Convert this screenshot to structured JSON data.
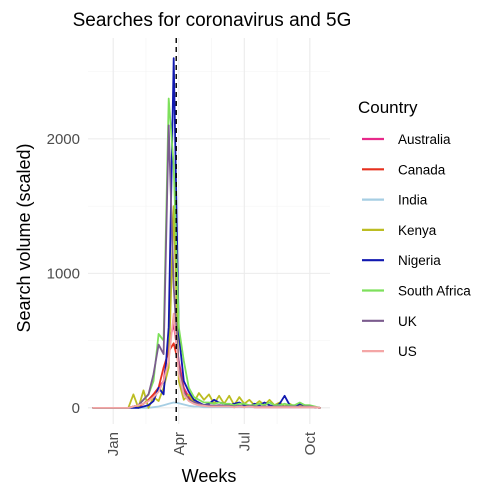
{
  "chart_data": {
    "type": "line",
    "title": "Searches for coronavirus and 5G",
    "xlabel": "Weeks",
    "ylabel": "Search volume (scaled)",
    "x_ticks": [
      {
        "label": "Jan",
        "week": 4
      },
      {
        "label": "Apr",
        "week": 17
      },
      {
        "label": "Jul",
        "week": 30
      },
      {
        "label": "Oct",
        "week": 43
      }
    ],
    "y_ticks": [
      0,
      1000,
      2000
    ],
    "xlim": [
      -1,
      47
    ],
    "ylim": [
      -120,
      2750
    ],
    "vline_week": 16.5,
    "grid": true,
    "legend": {
      "title": "Country",
      "placement": "right"
    },
    "series": [
      {
        "name": "Australia",
        "color": "#e7298a",
        "values": [
          0,
          0,
          0,
          0,
          0,
          0,
          0,
          0,
          10,
          20,
          30,
          60,
          100,
          150,
          200,
          480,
          620,
          350,
          150,
          80,
          40,
          30,
          20,
          15,
          10,
          15,
          10,
          10,
          5,
          10,
          5,
          10,
          5,
          5,
          5,
          5,
          5,
          5,
          5,
          5,
          5,
          5,
          5,
          5,
          5,
          0
        ]
      },
      {
        "name": "Canada",
        "color": "#e6301e",
        "values": [
          0,
          0,
          0,
          0,
          0,
          0,
          0,
          0,
          5,
          10,
          30,
          60,
          100,
          150,
          300,
          420,
          480,
          320,
          130,
          70,
          40,
          30,
          20,
          10,
          10,
          15,
          10,
          10,
          5,
          10,
          5,
          10,
          5,
          5,
          5,
          5,
          5,
          5,
          5,
          5,
          5,
          5,
          5,
          5,
          5,
          0
        ]
      },
      {
        "name": "India",
        "color": "#a6cee3",
        "values": [
          0,
          0,
          0,
          0,
          0,
          0,
          0,
          0,
          0,
          0,
          0,
          0,
          5,
          10,
          20,
          30,
          40,
          35,
          25,
          15,
          10,
          10,
          5,
          5,
          5,
          5,
          5,
          5,
          5,
          5,
          5,
          5,
          5,
          5,
          5,
          5,
          5,
          5,
          5,
          5,
          5,
          5,
          5,
          5,
          5,
          0
        ]
      },
      {
        "name": "Kenya",
        "color": "#bcbd22",
        "values": [
          0,
          0,
          0,
          0,
          0,
          0,
          0,
          0,
          100,
          0,
          130,
          0,
          80,
          50,
          150,
          300,
          1500,
          200,
          60,
          100,
          40,
          110,
          60,
          100,
          30,
          90,
          30,
          90,
          20,
          80,
          30,
          60,
          20,
          50,
          20,
          60,
          20,
          40,
          10,
          30,
          10,
          20,
          10,
          10,
          5,
          0
        ]
      },
      {
        "name": "Nigeria",
        "color": "#1018b0",
        "values": [
          0,
          0,
          0,
          0,
          0,
          0,
          0,
          0,
          0,
          0,
          10,
          20,
          50,
          150,
          100,
          600,
          2600,
          550,
          200,
          120,
          60,
          40,
          20,
          30,
          60,
          40,
          30,
          20,
          30,
          40,
          20,
          10,
          30,
          20,
          40,
          20,
          10,
          30,
          90,
          20,
          10,
          30,
          20,
          10,
          5,
          0
        ]
      },
      {
        "name": "South Africa",
        "color": "#7ee05c",
        "values": [
          0,
          0,
          0,
          0,
          0,
          0,
          0,
          0,
          10,
          20,
          60,
          100,
          200,
          550,
          500,
          2300,
          1800,
          600,
          350,
          150,
          80,
          60,
          40,
          40,
          30,
          40,
          30,
          30,
          20,
          30,
          30,
          20,
          20,
          30,
          20,
          40,
          20,
          20,
          30,
          20,
          20,
          40,
          20,
          20,
          10,
          0
        ]
      },
      {
        "name": "UK",
        "color": "#7b5c8e",
        "values": [
          0,
          0,
          0,
          0,
          0,
          0,
          0,
          0,
          10,
          20,
          60,
          100,
          250,
          470,
          400,
          2100,
          900,
          300,
          120,
          60,
          40,
          30,
          20,
          20,
          15,
          20,
          15,
          15,
          10,
          15,
          10,
          15,
          10,
          10,
          10,
          10,
          10,
          10,
          10,
          10,
          10,
          10,
          10,
          10,
          5,
          0
        ]
      },
      {
        "name": "US",
        "color": "#f4a6a6",
        "values": [
          0,
          0,
          0,
          0,
          0,
          0,
          0,
          0,
          10,
          20,
          30,
          50,
          80,
          120,
          200,
          350,
          700,
          250,
          100,
          50,
          30,
          20,
          15,
          10,
          10,
          10,
          10,
          10,
          5,
          10,
          5,
          10,
          5,
          5,
          5,
          5,
          5,
          5,
          5,
          5,
          5,
          5,
          5,
          5,
          5,
          0
        ]
      }
    ]
  }
}
